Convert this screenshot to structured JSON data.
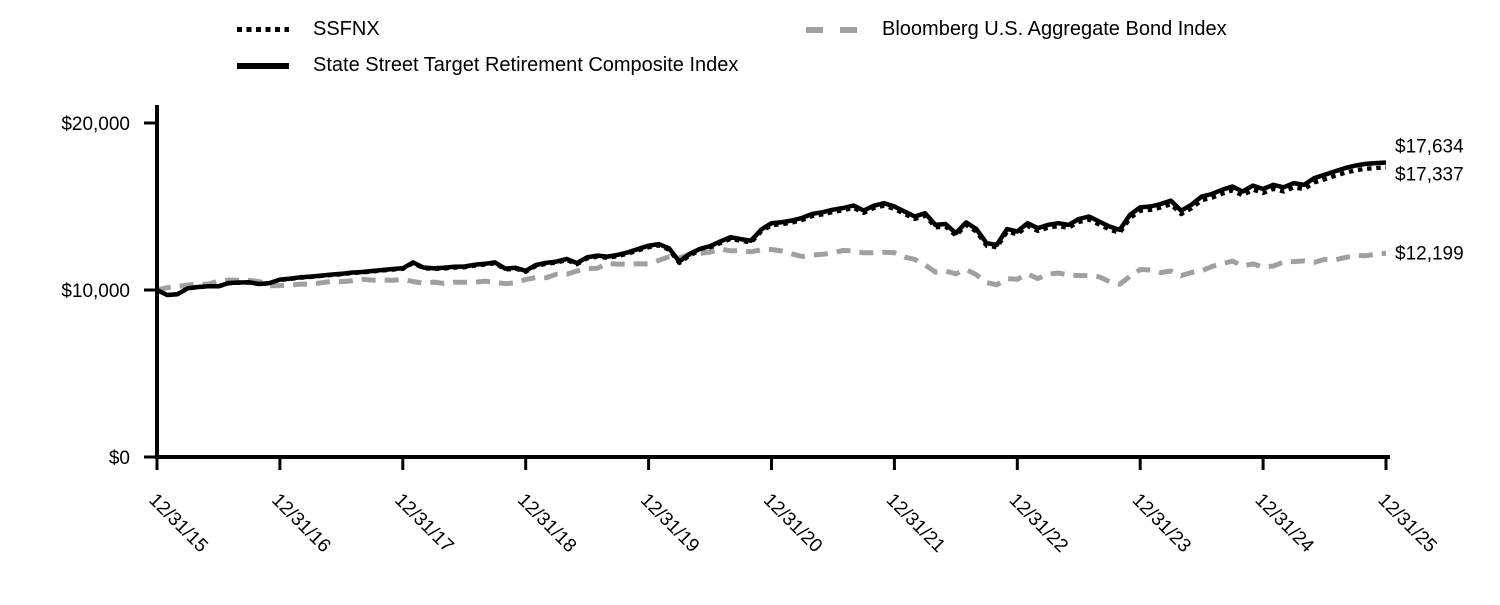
{
  "legend": {
    "note": "legend labels bound from chart_data.series names",
    "colors": {
      "black": "#000000",
      "gray": "#a0a0a0"
    }
  },
  "chart_data": {
    "type": "line",
    "title": "",
    "xlabel": "",
    "ylabel": "",
    "grid": false,
    "legend_position": "top",
    "ylim": [
      0,
      20000
    ],
    "y_ticks": [
      {
        "label": "$0",
        "value": 0
      },
      {
        "label": "$10,000",
        "value": 10000
      },
      {
        "label": "$20,000",
        "value": 20000
      }
    ],
    "x_tick_labels": [
      "12/31/15",
      "12/31/16",
      "12/31/17",
      "12/31/18",
      "12/31/19",
      "12/31/20",
      "12/31/21",
      "12/31/22",
      "12/31/23",
      "12/31/24",
      "12/31/25"
    ],
    "x_unit": "months since 12/31/15, one point per month",
    "series": [
      {
        "name": "SSFNX",
        "style": "dotted",
        "color": "#000000",
        "end_label": "$17,337",
        "final_value": 17337,
        "values": [
          10000,
          9699,
          9747,
          10096,
          10174,
          10223,
          10211,
          10410,
          10438,
          10447,
          10346,
          10404,
          10602,
          10661,
          10739,
          10777,
          10836,
          10894,
          10942,
          11011,
          11049,
          11107,
          11166,
          11224,
          11262,
          11609,
          11309,
          11257,
          11286,
          11344,
          11362,
          11460,
          11518,
          11596,
          11226,
          11274,
          11094,
          11440,
          11568,
          11636,
          11794,
          11543,
          11890,
          11987,
          11926,
          12034,
          12181,
          12378,
          12565,
          12663,
          12413,
          11616,
          12071,
          12368,
          12525,
          12811,
          13057,
          12946,
          12845,
          13508,
          13882,
          13940,
          14037,
          14194,
          14430,
          14527,
          14673,
          14770,
          14917,
          14617,
          14903,
          15049,
          14849,
          14550,
          14251,
          14447,
          13752,
          13800,
          13254,
          13895,
          13497,
          12655,
          12554,
          13491,
          13341,
          13833,
          13535,
          13731,
          13828,
          13727,
          14070,
          14217,
          13918,
          13620,
          13421,
          14307,
          14749,
          14796,
          14942,
          15137,
          14544,
          14886,
          15377,
          15523,
          15767,
          15962,
          15664,
          16007,
          15807,
          16051,
          15901,
          16145,
          16044,
          16436,
          16630,
          16825,
          17019,
          17164,
          17260,
          17307,
          17337
        ]
      },
      {
        "name": "Bloomberg U.S. Aggregate Bond Index",
        "style": "dashed",
        "color": "#a0a0a0",
        "end_label": "$12,199",
        "final_value": 12199,
        "values": [
          10000,
          10140,
          10210,
          10300,
          10340,
          10345,
          10530,
          10595,
          10585,
          10580,
          10500,
          10250,
          10265,
          10290,
          10355,
          10350,
          10430,
          10510,
          10500,
          10545,
          10640,
          10590,
          10595,
          10580,
          10630,
          10510,
          10410,
          10475,
          10395,
          10470,
          10460,
          10460,
          10525,
          10460,
          10375,
          10440,
          10630,
          10745,
          10735,
          10945,
          10945,
          11140,
          11280,
          11305,
          11600,
          11540,
          11570,
          11565,
          11560,
          11780,
          11990,
          11920,
          12135,
          12190,
          12270,
          12450,
          12350,
          12345,
          12290,
          12410,
          12425,
          12335,
          12160,
          12005,
          12100,
          12140,
          12225,
          12365,
          12340,
          12230,
          12230,
          12265,
          12235,
          11970,
          11835,
          11505,
          11070,
          11140,
          10965,
          11235,
          10915,
          10445,
          10310,
          10690,
          10640,
          10970,
          10685,
          10955,
          11020,
          10900,
          10865,
          10855,
          10785,
          10510,
          10345,
          10815,
          11230,
          11200,
          11040,
          11140,
          10860,
          11045,
          11150,
          11410,
          11575,
          11730,
          11440,
          11560,
          11370,
          11430,
          11680,
          11700,
          11740,
          11650,
          11830,
          11800,
          11940,
          12070,
          12050,
          12150,
          12199
        ]
      },
      {
        "name": "State Street Target Retirement Composite Index",
        "style": "solid",
        "color": "#000000",
        "end_label": "$17,634",
        "final_value": 17634,
        "values": [
          10000,
          9700,
          9750,
          10100,
          10180,
          10230,
          10220,
          10420,
          10450,
          10460,
          10360,
          10420,
          10620,
          10680,
          10760,
          10800,
          10860,
          10920,
          10970,
          11040,
          11080,
          11140,
          11200,
          11260,
          11300,
          11650,
          11350,
          11300,
          11330,
          11390,
          11410,
          11510,
          11570,
          11650,
          11280,
          11330,
          11150,
          11500,
          11630,
          11700,
          11860,
          11610,
          11960,
          12060,
          12000,
          12110,
          12260,
          12460,
          12650,
          12750,
          12500,
          11700,
          12160,
          12460,
          12620,
          12910,
          13160,
          13050,
          12950,
          13620,
          14000,
          14060,
          14160,
          14320,
          14560,
          14660,
          14810,
          14910,
          15060,
          14760,
          15050,
          15200,
          15000,
          14700,
          14400,
          14600,
          13900,
          13950,
          13400,
          14050,
          13650,
          12800,
          12700,
          13650,
          13500,
          14000,
          13700,
          13900,
          14000,
          13900,
          14250,
          14400,
          14100,
          13800,
          13600,
          14500,
          14950,
          15000,
          15150,
          15350,
          14750,
          15100,
          15600,
          15750,
          16000,
          16200,
          15900,
          16250,
          16050,
          16300,
          16150,
          16400,
          16300,
          16700,
          16900,
          17100,
          17300,
          17450,
          17550,
          17600,
          17634
        ]
      }
    ]
  }
}
